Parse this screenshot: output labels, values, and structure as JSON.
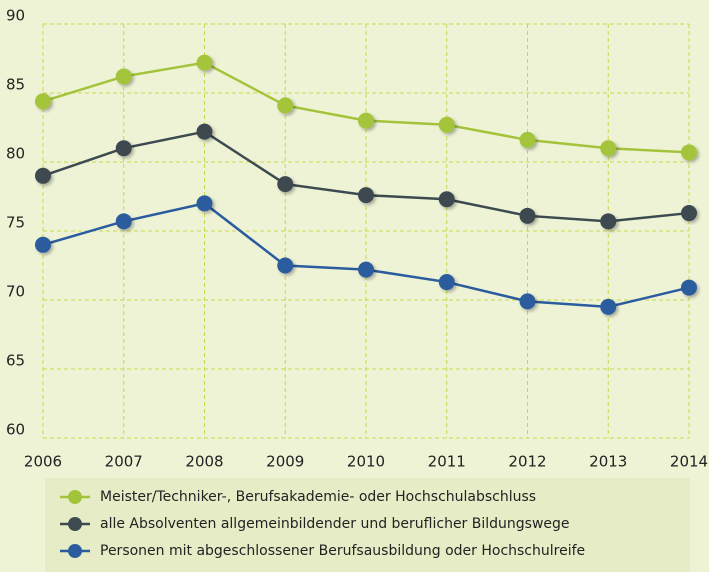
{
  "chart_data": {
    "type": "line",
    "x": [
      2006,
      2007,
      2008,
      2009,
      2010,
      2011,
      2012,
      2013,
      2014
    ],
    "xlim": [
      2006,
      2014
    ],
    "xticks": [
      2006,
      2007,
      2008,
      2009,
      2010,
      2011,
      2012,
      2013,
      2014
    ],
    "ylim": [
      60,
      90
    ],
    "yticks": [
      60,
      65,
      70,
      75,
      80,
      85,
      90
    ],
    "grid": true,
    "legend": "bottom",
    "series": [
      {
        "name": "Meister/Techniker-, Berufsakademie- oder Hochschulabschluss",
        "color": "#a3c43a",
        "values": [
          84.4,
          86.2,
          87.2,
          84.1,
          83.0,
          82.7,
          81.6,
          81.0,
          80.7
        ]
      },
      {
        "name": "alle Absolventen allgemeinbildender und beruflicher Bildungswege",
        "color": "#3d4a50",
        "values": [
          79.0,
          81.0,
          82.2,
          78.4,
          77.6,
          77.3,
          76.1,
          75.7,
          76.3
        ]
      },
      {
        "name": "Personen mit abgeschlossener Berufsausbildung oder Hochschulreife",
        "color": "#2b5c9e",
        "values": [
          74.0,
          75.7,
          77.0,
          72.5,
          72.2,
          71.3,
          69.9,
          69.5,
          70.9
        ]
      }
    ]
  }
}
